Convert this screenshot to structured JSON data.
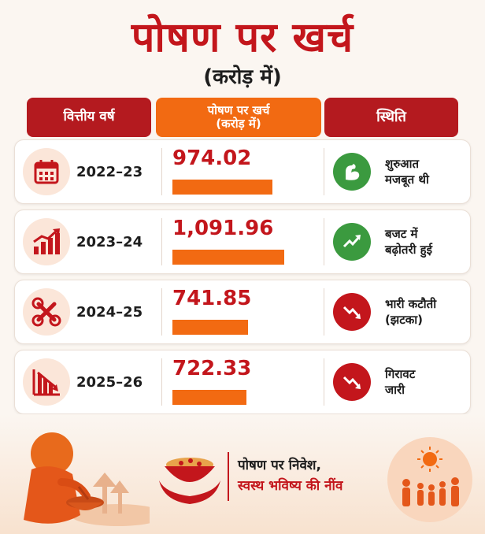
{
  "title": "पोषण पर खर्च",
  "subtitle": "(करोड़ में)",
  "headers": {
    "year": "वित्तीय वर्ष",
    "spend_line1": "पोषण पर खर्च",
    "spend_line2": "(करोड़ में)",
    "status": "स्थिति"
  },
  "chart_data": {
    "type": "bar",
    "title": "पोषण पर खर्च",
    "unit": "(करोड़ में)",
    "categories": [
      "2022–23",
      "2023–24",
      "2024–25",
      "2025–26"
    ],
    "values": [
      974.02,
      1091.96,
      741.85,
      722.33
    ],
    "value_labels": [
      "974.02",
      "1,091.96",
      "741.85",
      "722.33"
    ],
    "status": [
      [
        "शुरुआत",
        "मजबूत थी"
      ],
      [
        "बजट में",
        "बढ़ोतरी हुई"
      ],
      [
        "भारी कटौती",
        "(झटका)"
      ],
      [
        "गिरावट",
        "जारी"
      ]
    ],
    "status_icons": [
      "flexed-arm-icon",
      "trend-up-icon",
      "trend-down-icon",
      "trend-down-icon"
    ],
    "status_colors": [
      "#3b9a3f",
      "#3b9a3f",
      "#c3161c",
      "#c3161c"
    ],
    "row_icons": [
      "calendar-icon",
      "growth-chart-icon",
      "broken-tools-icon",
      "decline-chart-icon"
    ],
    "bar_color": "#f26a12"
  },
  "footer": {
    "line1": "पोषण पर निवेश,",
    "line2": "स्वस्थ भविष्य की नींव"
  },
  "colors": {
    "primary_red": "#c3161c",
    "orange": "#f26a12",
    "green": "#3b9a3f"
  }
}
